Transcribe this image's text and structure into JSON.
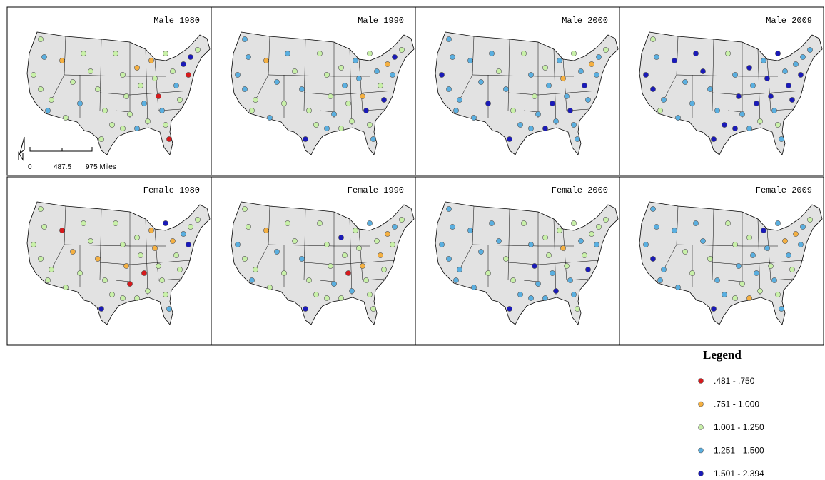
{
  "panels": [
    {
      "title": "Male 1980",
      "classes": [
        2,
        3,
        2,
        2,
        2,
        3,
        1,
        2,
        3,
        2,
        2,
        2,
        2,
        2,
        2,
        2,
        2,
        2,
        1,
        2,
        3,
        2,
        1,
        2,
        0,
        3,
        2,
        0,
        2,
        2,
        3,
        2,
        4,
        0,
        4,
        2,
        3,
        2,
        2,
        2
      ]
    },
    {
      "title": "Male 1990",
      "classes": [
        3,
        3,
        3,
        3,
        2,
        2,
        1,
        3,
        2,
        2,
        3,
        2,
        2,
        4,
        2,
        2,
        2,
        3,
        2,
        3,
        2,
        2,
        3,
        3,
        1,
        4,
        2,
        3,
        2,
        3,
        2,
        4,
        1,
        3,
        4,
        2,
        2,
        3,
        3,
        3
      ]
    },
    {
      "title": "Male 2000",
      "classes": [
        3,
        3,
        4,
        3,
        3,
        3,
        3,
        3,
        4,
        2,
        3,
        2,
        3,
        4,
        2,
        3,
        2,
        3,
        2,
        3,
        4,
        3,
        3,
        1,
        3,
        4,
        3,
        3,
        2,
        3,
        4,
        3,
        1,
        3,
        3,
        2,
        4,
        3,
        3,
        3
      ]
    },
    {
      "title": "Male 2009",
      "classes": [
        2,
        3,
        4,
        4,
        3,
        2,
        4,
        3,
        3,
        4,
        3,
        3,
        4,
        4,
        2,
        3,
        4,
        3,
        4,
        3,
        4,
        2,
        3,
        4,
        4,
        3,
        2,
        3,
        4,
        3,
        4,
        4,
        3,
        4,
        3,
        3,
        3,
        4,
        3,
        4
      ]
    },
    {
      "title": "Female 1980",
      "classes": [
        2,
        2,
        2,
        2,
        2,
        2,
        0,
        1,
        2,
        2,
        1,
        2,
        2,
        4,
        2,
        2,
        1,
        0,
        2,
        2,
        0,
        2,
        1,
        1,
        2,
        2,
        2,
        3,
        4,
        1,
        2,
        2,
        3,
        4,
        2,
        2,
        2,
        2,
        2,
        2
      ]
    },
    {
      "title": "Female 1990",
      "classes": [
        2,
        2,
        3,
        2,
        2,
        3,
        1,
        3,
        2,
        2,
        3,
        2,
        2,
        4,
        2,
        2,
        2,
        3,
        4,
        2,
        0,
        3,
        2,
        2,
        1,
        2,
        2,
        2,
        3,
        2,
        1,
        2,
        1,
        2,
        3,
        2,
        2,
        2,
        2,
        2
      ]
    },
    {
      "title": "Female 2000",
      "classes": [
        3,
        3,
        3,
        3,
        3,
        3,
        3,
        3,
        2,
        3,
        2,
        2,
        3,
        4,
        2,
        3,
        4,
        3,
        2,
        2,
        3,
        4,
        2,
        1,
        2,
        3,
        3,
        2,
        2,
        3,
        2,
        4,
        2,
        3,
        2,
        2,
        3,
        3,
        3,
        3
      ]
    },
    {
      "title": "Female 2009",
      "classes": [
        3,
        3,
        3,
        4,
        3,
        3,
        3,
        2,
        2,
        3,
        2,
        3,
        3,
        4,
        2,
        2,
        3,
        2,
        2,
        3,
        3,
        2,
        4,
        3,
        2,
        3,
        2,
        3,
        3,
        1,
        3,
        2,
        1,
        3,
        3,
        2,
        1,
        2,
        3,
        3
      ]
    }
  ],
  "scale_bar": {
    "labels": [
      "0",
      "487.5",
      "975 Miles"
    ]
  },
  "legend": {
    "title": "Legend",
    "items": [
      {
        "label": ".481 - .750",
        "color": "#d7191c"
      },
      {
        "label": ".751 - 1.000",
        "color": "#f5b041"
      },
      {
        "label": "1.001 - 1.250",
        "color": "#c8f0a8"
      },
      {
        "label": "1.251 - 1.500",
        "color": "#5aafe0"
      },
      {
        "label": "1.501 - 2.394",
        "color": "#1a1ab8"
      }
    ]
  }
}
